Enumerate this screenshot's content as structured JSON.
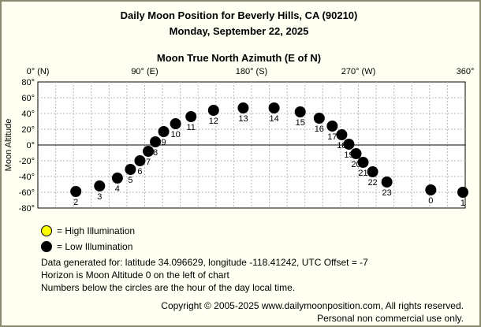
{
  "title": "Daily Moon Position for Beverly Hills, CA (90210)",
  "subtitle": "Monday, September 22, 2025",
  "legend": {
    "high": "= High Illumination",
    "low": "= Low Illumination",
    "high_color": "#ffff00",
    "low_color": "#000000"
  },
  "notes": [
    "Data generated for: latitude 34.096629, longitude -118.41242, UTC Offset = -7",
    "Horizon is Moon Altitude 0 on the left of chart",
    "Numbers below the circles are the hour of the day local time."
  ],
  "footer": {
    "copyright": "Copyright © 2005-2025 www.dailymoonposition.com, All rights reserved.",
    "license": "Personal non commercial use only."
  },
  "chart_data": {
    "type": "scatter",
    "title": "",
    "xlabel": "Moon True North Azimuth (E of N)",
    "ylabel": "Moon Altitude",
    "xlim": [
      0,
      360
    ],
    "ylim": [
      -80,
      80
    ],
    "xticks": [
      {
        "value": 0,
        "label": "0° (N)"
      },
      {
        "value": 90,
        "label": "90° (E)"
      },
      {
        "value": 180,
        "label": "180° (S)"
      },
      {
        "value": 270,
        "label": "270° (W)"
      },
      {
        "value": 360,
        "label": "360°"
      }
    ],
    "yticks": [
      {
        "value": 80,
        "label": "80°"
      },
      {
        "value": 60,
        "label": "60°"
      },
      {
        "value": 40,
        "label": "40°"
      },
      {
        "value": 20,
        "label": "20°"
      },
      {
        "value": 0,
        "label": "0°"
      },
      {
        "value": -20,
        "label": "-20°"
      },
      {
        "value": -40,
        "label": "-40°"
      },
      {
        "value": -60,
        "label": "-60°"
      },
      {
        "value": -80,
        "label": "-80°"
      }
    ],
    "grid": true,
    "horizon": 0,
    "points": [
      {
        "hour": "2",
        "x": 32,
        "y": -59,
        "illumination": "low"
      },
      {
        "hour": "3",
        "x": 52,
        "y": -52,
        "illumination": "low"
      },
      {
        "hour": "4",
        "x": 67,
        "y": -42,
        "illumination": "low"
      },
      {
        "hour": "5",
        "x": 78,
        "y": -31,
        "illumination": "low"
      },
      {
        "hour": "6",
        "x": 86,
        "y": -20,
        "illumination": "low"
      },
      {
        "hour": "7",
        "x": 93,
        "y": -8,
        "illumination": "low"
      },
      {
        "hour": "8",
        "x": 99,
        "y": 4,
        "illumination": "low"
      },
      {
        "hour": "9",
        "x": 106,
        "y": 17,
        "illumination": "low"
      },
      {
        "hour": "10",
        "x": 116,
        "y": 27,
        "illumination": "low"
      },
      {
        "hour": "11",
        "x": 129,
        "y": 36,
        "illumination": "low"
      },
      {
        "hour": "12",
        "x": 148,
        "y": 44,
        "illumination": "low"
      },
      {
        "hour": "13",
        "x": 173,
        "y": 47,
        "illumination": "low"
      },
      {
        "hour": "14",
        "x": 199,
        "y": 47,
        "illumination": "low"
      },
      {
        "hour": "15",
        "x": 221,
        "y": 42,
        "illumination": "low"
      },
      {
        "hour": "16",
        "x": 237,
        "y": 34,
        "illumination": "low"
      },
      {
        "hour": "17",
        "x": 248,
        "y": 24,
        "illumination": "low"
      },
      {
        "hour": "18",
        "x": 256,
        "y": 13,
        "illumination": "low"
      },
      {
        "hour": "19",
        "x": 262,
        "y": 1,
        "illumination": "low"
      },
      {
        "hour": "20",
        "x": 268,
        "y": -11,
        "illumination": "low"
      },
      {
        "hour": "21",
        "x": 274,
        "y": -22,
        "illumination": "low"
      },
      {
        "hour": "22",
        "x": 282,
        "y": -34,
        "illumination": "low"
      },
      {
        "hour": "23",
        "x": 294,
        "y": -47,
        "illumination": "low"
      },
      {
        "hour": "0",
        "x": 331,
        "y": -57,
        "illumination": "low"
      },
      {
        "hour": "1",
        "x": 358,
        "y": -60,
        "illumination": "low"
      }
    ]
  }
}
